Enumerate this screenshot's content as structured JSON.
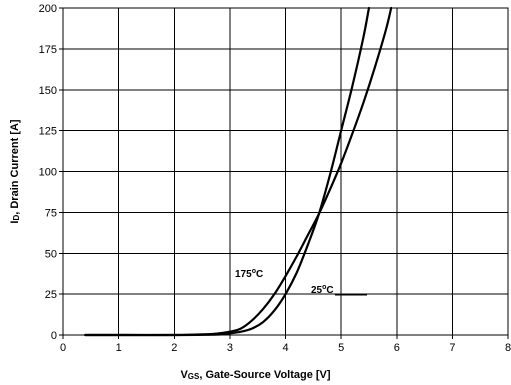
{
  "chart_data": {
    "type": "line",
    "xlabel_main": "V",
    "xlabel_sub": "GS",
    "xlabel_rest": ", Gate-Source Voltage [V]",
    "ylabel_main": "I",
    "ylabel_sub": "D",
    "ylabel_rest": ", Drain Current [A]",
    "xlim": [
      0,
      8
    ],
    "ylim": [
      0,
      200
    ],
    "x_ticks": [
      0,
      1,
      2,
      3,
      4,
      5,
      6,
      7,
      8
    ],
    "y_ticks": [
      0,
      25,
      50,
      75,
      100,
      125,
      150,
      175,
      200
    ],
    "grid": true,
    "series": [
      {
        "name": "25°C",
        "label_main": "25",
        "label_deg": "o",
        "label_unit": "C",
        "x": [
          0.4,
          1.0,
          2.0,
          2.8,
          3.0,
          3.2,
          3.4,
          3.6,
          3.8,
          4.0,
          4.2,
          4.4,
          4.6,
          4.8,
          5.0,
          5.2,
          5.4,
          5.5
        ],
        "y": [
          0,
          0,
          0,
          0.3,
          1,
          2,
          4,
          8,
          15,
          25,
          38,
          55,
          74,
          98,
          125,
          152,
          182,
          200
        ]
      },
      {
        "name": "175°C",
        "label_main": "175",
        "label_deg": "o",
        "label_unit": "C",
        "x": [
          0.4,
          1.0,
          2.0,
          2.6,
          2.8,
          3.0,
          3.2,
          3.4,
          3.6,
          3.8,
          4.0,
          4.2,
          4.4,
          4.6,
          4.8,
          5.0,
          5.2,
          5.4,
          5.6,
          5.8,
          5.9
        ],
        "y": [
          0,
          0,
          0,
          0.5,
          1,
          2,
          4,
          9,
          16,
          25,
          36,
          48,
          61,
          74,
          89,
          105,
          123,
          142,
          163,
          186,
          200
        ]
      }
    ]
  }
}
